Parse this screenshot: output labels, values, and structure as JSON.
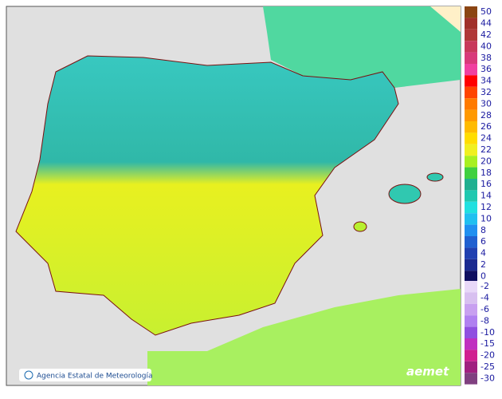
{
  "map": {
    "credit": "Agencia Estatal de Meteorología",
    "logo": "aemet",
    "legend": {
      "positive": [
        {
          "value": 50,
          "color": "#8b4513"
        },
        {
          "value": 44,
          "color": "#a0302a"
        },
        {
          "value": 42,
          "color": "#b03838"
        },
        {
          "value": 40,
          "color": "#c8385a"
        },
        {
          "value": 38,
          "color": "#d83a7a"
        },
        {
          "value": 36,
          "color": "#f040a0"
        },
        {
          "value": 34,
          "color": "#ff0000"
        },
        {
          "value": 32,
          "color": "#ff4400"
        },
        {
          "value": 30,
          "color": "#ff7a00"
        },
        {
          "value": 28,
          "color": "#ff9900"
        },
        {
          "value": 26,
          "color": "#ffbb00"
        },
        {
          "value": 24,
          "color": "#ffdd00"
        },
        {
          "value": 22,
          "color": "#f0f020"
        },
        {
          "value": 20,
          "color": "#a8f020"
        },
        {
          "value": 18,
          "color": "#40d040"
        },
        {
          "value": 16,
          "color": "#20b090"
        },
        {
          "value": 14,
          "color": "#20c8b0"
        },
        {
          "value": 12,
          "color": "#20e0e0"
        },
        {
          "value": 10,
          "color": "#20c0f0"
        },
        {
          "value": 8,
          "color": "#2090f0"
        },
        {
          "value": 6,
          "color": "#2060d0"
        },
        {
          "value": 4,
          "color": "#2040b0"
        },
        {
          "value": 2,
          "color": "#1a2a90"
        },
        {
          "value": 0,
          "color": "#101060"
        }
      ],
      "negative": [
        {
          "value": -2,
          "color": "#e8d8f8"
        },
        {
          "value": -4,
          "color": "#d8c0f0"
        },
        {
          "value": -6,
          "color": "#c8a0f0"
        },
        {
          "value": -8,
          "color": "#b080f0"
        },
        {
          "value": -10,
          "color": "#9050e0"
        },
        {
          "value": -15,
          "color": "#c030c0"
        },
        {
          "value": -20,
          "color": "#d02090"
        },
        {
          "value": -25,
          "color": "#a02080"
        },
        {
          "value": -30,
          "color": "#804080"
        }
      ]
    }
  }
}
